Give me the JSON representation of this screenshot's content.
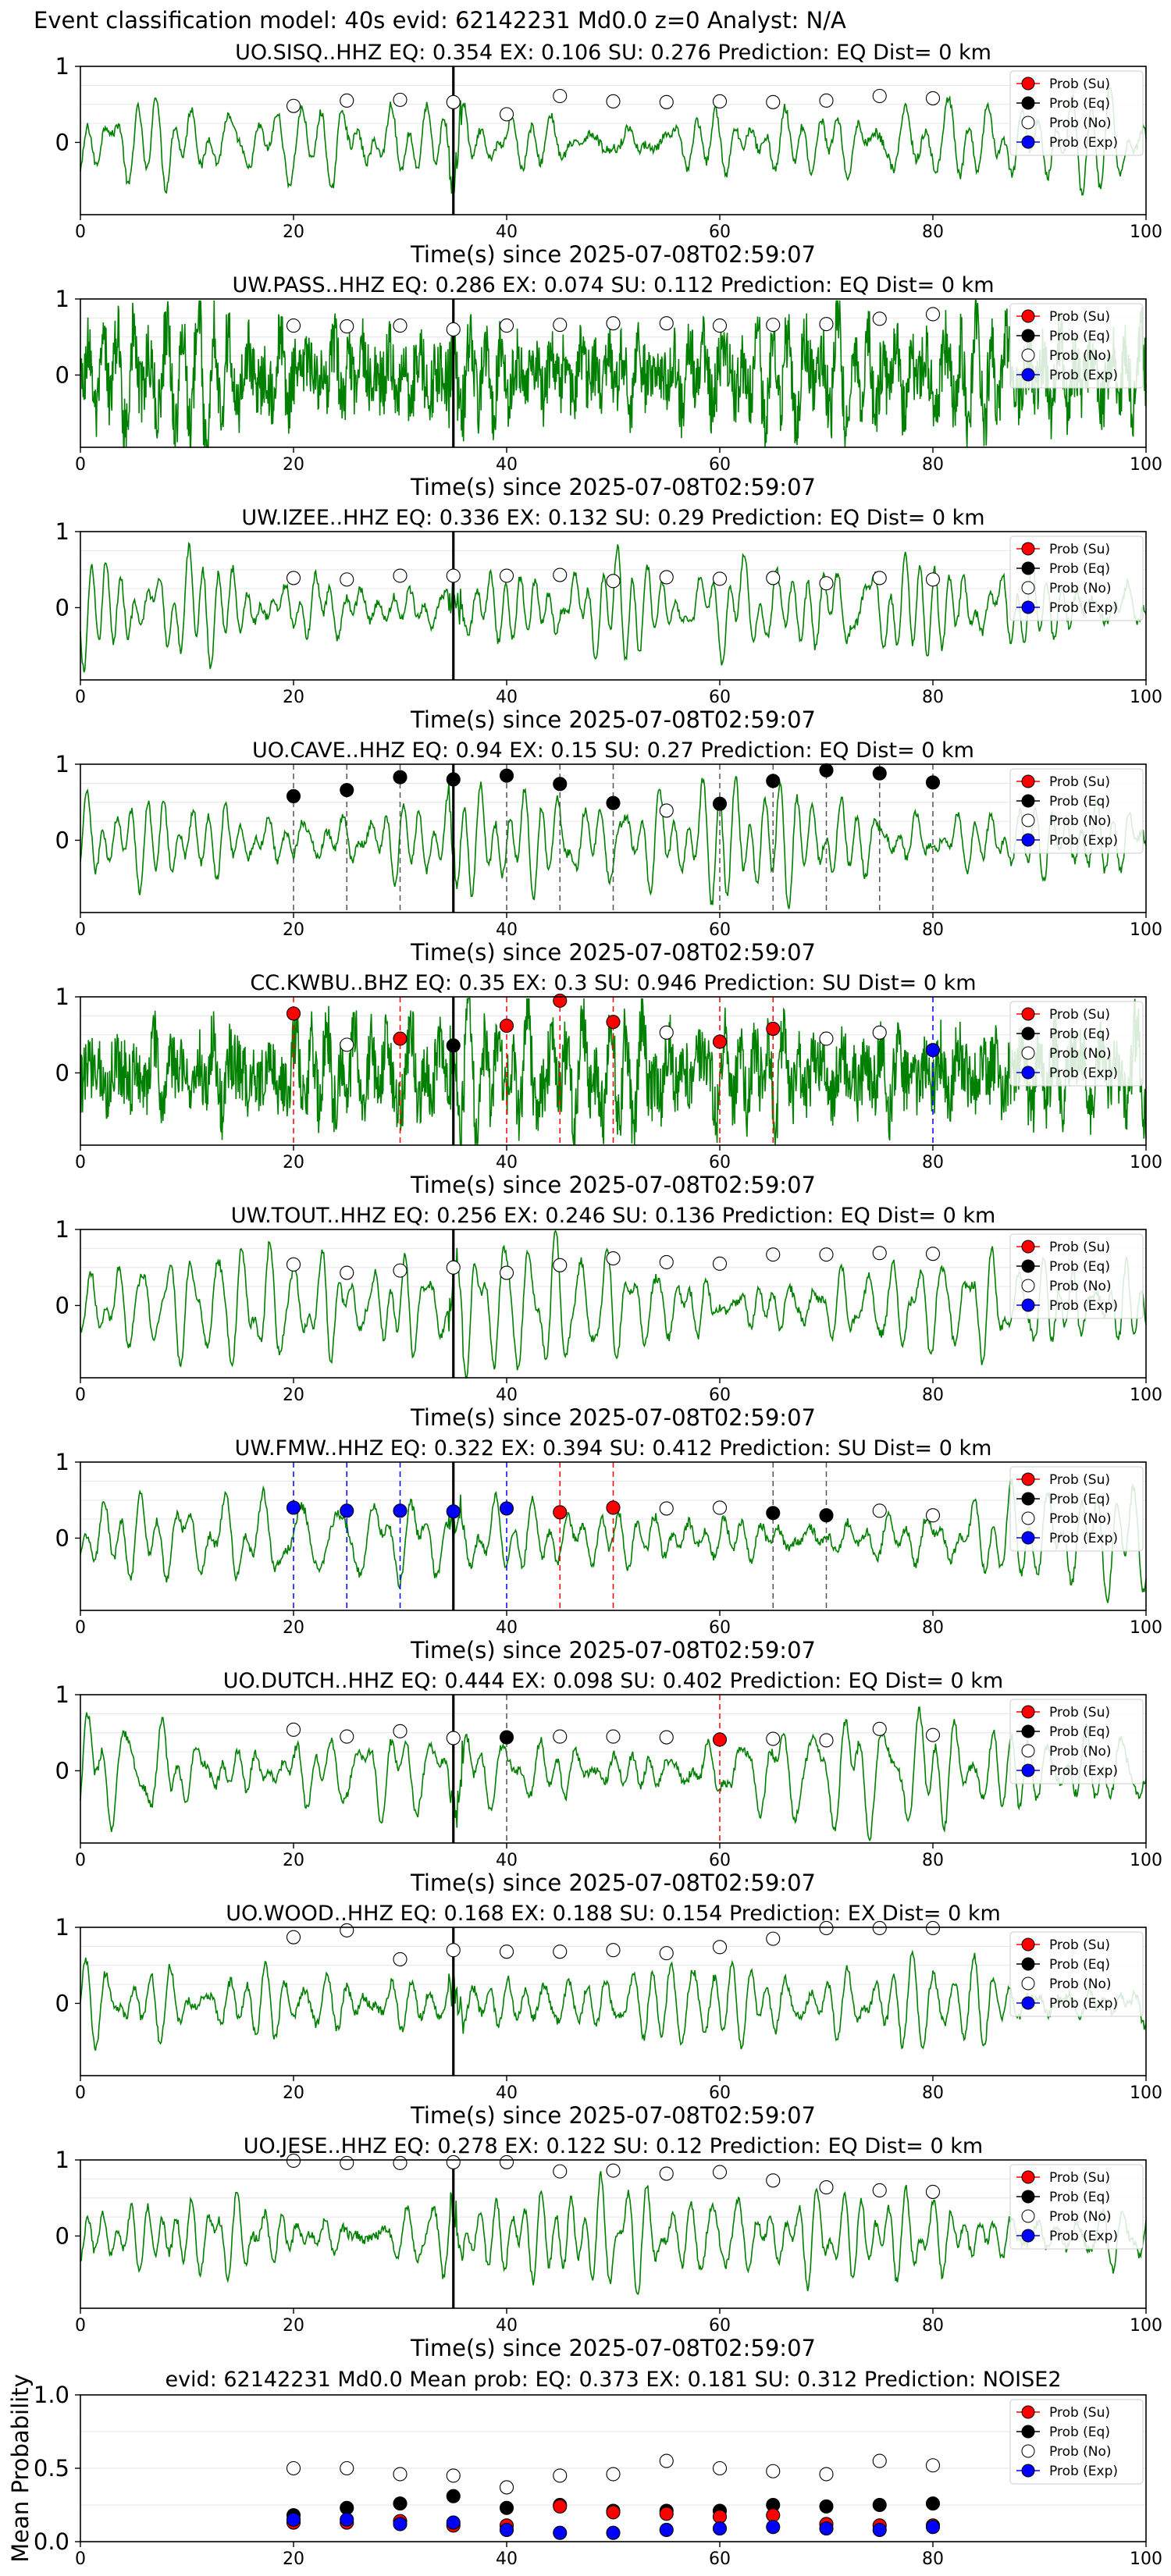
{
  "figure": {
    "suptitle": "Event classification model: 40s evid: 62142231 Md0.0 z=0 Analyst: N/A",
    "xlabel": "Time(s) since 2025-07-08T02:59:07",
    "xticks": [
      0,
      20,
      40,
      60,
      80,
      100
    ],
    "yticks_wave": [
      0,
      1
    ],
    "legend": [
      "Prob (Su)",
      "Prob (Eq)",
      "Prob (No)",
      "Prob (Exp)"
    ],
    "colors": {
      "su": "#ff0000",
      "eq": "#000000",
      "no": "#ffffff",
      "exp": "#0000ff",
      "wave": "#008000"
    },
    "arrival_line_t": 35,
    "prob_times": [
      20,
      25,
      30,
      35,
      40,
      45,
      50,
      55,
      60,
      65,
      70,
      75,
      80
    ]
  },
  "chart_data": [
    {
      "type": "line",
      "station": "UO.SISQ..HHZ",
      "title": "UO.SISQ..HHZ   EQ: 0.354  EX: 0.106  SU: 0.276   Prediction: EQ    Dist= 0 km",
      "xlim": [
        0,
        100
      ],
      "ylim": [
        -0.95,
        1.0
      ],
      "wave_style": "smooth",
      "points": [
        [
          20,
          0.48,
          "no"
        ],
        [
          25,
          0.55,
          "no"
        ],
        [
          30,
          0.56,
          "no"
        ],
        [
          35,
          0.53,
          "no"
        ],
        [
          40,
          0.37,
          "no"
        ],
        [
          45,
          0.61,
          "no"
        ],
        [
          50,
          0.54,
          "no"
        ],
        [
          55,
          0.53,
          "no"
        ],
        [
          60,
          0.54,
          "no"
        ],
        [
          65,
          0.53,
          "no"
        ],
        [
          70,
          0.55,
          "no"
        ],
        [
          75,
          0.61,
          "no"
        ],
        [
          80,
          0.58,
          "no"
        ]
      ]
    },
    {
      "type": "line",
      "station": "UW.PASS..HHZ",
      "title": "UW.PASS..HHZ   EQ: 0.286  EX: 0.074  SU: 0.112   Prediction: EQ    Dist= 0 km",
      "xlim": [
        0,
        100
      ],
      "ylim": [
        -0.95,
        1.0
      ],
      "wave_style": "noisy",
      "points": [
        [
          20,
          0.65,
          "no"
        ],
        [
          25,
          0.64,
          "no"
        ],
        [
          30,
          0.65,
          "no"
        ],
        [
          35,
          0.6,
          "no"
        ],
        [
          40,
          0.65,
          "no"
        ],
        [
          45,
          0.66,
          "no"
        ],
        [
          50,
          0.68,
          "no"
        ],
        [
          55,
          0.68,
          "no"
        ],
        [
          60,
          0.65,
          "no"
        ],
        [
          65,
          0.66,
          "no"
        ],
        [
          70,
          0.67,
          "no"
        ],
        [
          75,
          0.74,
          "no"
        ],
        [
          80,
          0.8,
          "no"
        ]
      ]
    },
    {
      "type": "line",
      "station": "UW.IZEE..HHZ",
      "title": "UW.IZEE..HHZ   EQ: 0.336  EX: 0.132  SU: 0.29   Prediction: EQ    Dist= 0 km",
      "xlim": [
        0,
        100
      ],
      "ylim": [
        -0.95,
        1.0
      ],
      "wave_style": "smooth",
      "points": [
        [
          20,
          0.39,
          "no"
        ],
        [
          25,
          0.37,
          "no"
        ],
        [
          30,
          0.42,
          "no"
        ],
        [
          35,
          0.42,
          "no"
        ],
        [
          40,
          0.42,
          "no"
        ],
        [
          45,
          0.43,
          "no"
        ],
        [
          50,
          0.35,
          "no"
        ],
        [
          55,
          0.4,
          "no"
        ],
        [
          60,
          0.38,
          "no"
        ],
        [
          65,
          0.39,
          "no"
        ],
        [
          70,
          0.32,
          "no"
        ],
        [
          75,
          0.39,
          "no"
        ],
        [
          80,
          0.37,
          "no"
        ]
      ]
    },
    {
      "type": "line",
      "station": "UO.CAVE..HHZ",
      "title": "UO.CAVE..HHZ   EQ: 0.94  EX: 0.15  SU: 0.27   Prediction: EQ    Dist= 0 km",
      "xlim": [
        0,
        100
      ],
      "ylim": [
        -0.95,
        1.0
      ],
      "wave_style": "smooth",
      "points": [
        [
          20,
          0.58,
          "eq"
        ],
        [
          25,
          0.66,
          "eq"
        ],
        [
          30,
          0.83,
          "eq"
        ],
        [
          35,
          0.8,
          "eq"
        ],
        [
          40,
          0.85,
          "eq"
        ],
        [
          45,
          0.74,
          "eq"
        ],
        [
          50,
          0.49,
          "eq"
        ],
        [
          55,
          0.39,
          "no"
        ],
        [
          60,
          0.48,
          "eq"
        ],
        [
          65,
          0.78,
          "eq"
        ],
        [
          70,
          0.92,
          "eq"
        ],
        [
          75,
          0.88,
          "eq"
        ],
        [
          80,
          0.76,
          "eq"
        ]
      ]
    },
    {
      "type": "line",
      "station": "CC.KWBU..BHZ",
      "title": "CC.KWBU..BHZ   EQ: 0.35  EX: 0.3  SU: 0.946   Prediction: SU    Dist= 0 km",
      "xlim": [
        0,
        100
      ],
      "ylim": [
        -0.95,
        1.0
      ],
      "wave_style": "noisy",
      "points": [
        [
          20,
          0.78,
          "su"
        ],
        [
          25,
          0.37,
          "no"
        ],
        [
          30,
          0.45,
          "su"
        ],
        [
          35,
          0.36,
          "eq"
        ],
        [
          40,
          0.62,
          "su"
        ],
        [
          45,
          0.95,
          "su"
        ],
        [
          50,
          0.67,
          "su"
        ],
        [
          55,
          0.53,
          "no"
        ],
        [
          60,
          0.41,
          "su"
        ],
        [
          65,
          0.58,
          "su"
        ],
        [
          70,
          0.45,
          "no"
        ],
        [
          75,
          0.53,
          "no"
        ],
        [
          80,
          0.3,
          "exp"
        ]
      ]
    },
    {
      "type": "line",
      "station": "UW.TOUT..HHZ",
      "title": "UW.TOUT..HHZ   EQ: 0.256  EX: 0.246  SU: 0.136   Prediction: EQ    Dist= 0 km",
      "xlim": [
        0,
        100
      ],
      "ylim": [
        -0.95,
        1.0
      ],
      "wave_style": "smooth",
      "points": [
        [
          20,
          0.54,
          "no"
        ],
        [
          25,
          0.43,
          "no"
        ],
        [
          30,
          0.46,
          "no"
        ],
        [
          35,
          0.5,
          "no"
        ],
        [
          40,
          0.43,
          "no"
        ],
        [
          45,
          0.53,
          "no"
        ],
        [
          50,
          0.62,
          "no"
        ],
        [
          55,
          0.57,
          "no"
        ],
        [
          60,
          0.55,
          "no"
        ],
        [
          65,
          0.67,
          "no"
        ],
        [
          70,
          0.67,
          "no"
        ],
        [
          75,
          0.69,
          "no"
        ],
        [
          80,
          0.68,
          "no"
        ]
      ]
    },
    {
      "type": "line",
      "station": "UW.FMW..HHZ",
      "title": "UW.FMW..HHZ   EQ: 0.322  EX: 0.394  SU: 0.412   Prediction: SU    Dist= 0 km",
      "xlim": [
        0,
        100
      ],
      "ylim": [
        -0.95,
        1.0
      ],
      "wave_style": "smooth",
      "points": [
        [
          20,
          0.4,
          "exp"
        ],
        [
          25,
          0.36,
          "exp"
        ],
        [
          30,
          0.36,
          "exp"
        ],
        [
          35,
          0.35,
          "exp"
        ],
        [
          40,
          0.39,
          "exp"
        ],
        [
          45,
          0.34,
          "su"
        ],
        [
          50,
          0.4,
          "su"
        ],
        [
          55,
          0.39,
          "no"
        ],
        [
          60,
          0.4,
          "no"
        ],
        [
          65,
          0.33,
          "eq"
        ],
        [
          70,
          0.3,
          "eq"
        ],
        [
          75,
          0.36,
          "no"
        ],
        [
          80,
          0.3,
          "no"
        ]
      ]
    },
    {
      "type": "line",
      "station": "UO.DUTCH..HHZ",
      "title": "UO.DUTCH..HHZ   EQ: 0.444  EX: 0.098  SU: 0.402   Prediction: EQ    Dist= 0 km",
      "xlim": [
        0,
        100
      ],
      "ylim": [
        -0.95,
        1.0
      ],
      "wave_style": "smooth",
      "points": [
        [
          20,
          0.54,
          "no"
        ],
        [
          25,
          0.45,
          "no"
        ],
        [
          30,
          0.52,
          "no"
        ],
        [
          35,
          0.43,
          "no"
        ],
        [
          40,
          0.44,
          "eq"
        ],
        [
          45,
          0.45,
          "no"
        ],
        [
          50,
          0.45,
          "no"
        ],
        [
          55,
          0.44,
          "no"
        ],
        [
          60,
          0.41,
          "su"
        ],
        [
          65,
          0.42,
          "no"
        ],
        [
          70,
          0.4,
          "no"
        ],
        [
          75,
          0.55,
          "no"
        ],
        [
          80,
          0.47,
          "no"
        ]
      ]
    },
    {
      "type": "line",
      "station": "UO.WOOD..HHZ",
      "title": "UO.WOOD..HHZ   EQ: 0.168  EX: 0.188  SU: 0.154   Prediction: EX    Dist= 0 km",
      "xlim": [
        0,
        100
      ],
      "ylim": [
        -0.95,
        1.0
      ],
      "wave_style": "smooth",
      "points": [
        [
          20,
          0.87,
          "no"
        ],
        [
          25,
          0.96,
          "no"
        ],
        [
          30,
          0.58,
          "no"
        ],
        [
          35,
          0.7,
          "no"
        ],
        [
          40,
          0.68,
          "no"
        ],
        [
          45,
          0.68,
          "no"
        ],
        [
          50,
          0.7,
          "no"
        ],
        [
          55,
          0.66,
          "no"
        ],
        [
          60,
          0.74,
          "no"
        ],
        [
          65,
          0.85,
          "no"
        ],
        [
          70,
          0.99,
          "no"
        ],
        [
          75,
          0.99,
          "no"
        ],
        [
          80,
          0.99,
          "no"
        ]
      ]
    },
    {
      "type": "line",
      "station": "UO.JESE..HHZ",
      "title": "UO.JESE..HHZ   EQ: 0.278  EX: 0.122  SU: 0.12   Prediction: EQ    Dist= 0 km",
      "xlim": [
        0,
        100
      ],
      "ylim": [
        -0.95,
        1.0
      ],
      "wave_style": "smooth",
      "points": [
        [
          20,
          0.99,
          "no"
        ],
        [
          25,
          0.96,
          "no"
        ],
        [
          30,
          0.96,
          "no"
        ],
        [
          35,
          0.97,
          "no"
        ],
        [
          40,
          0.97,
          "no"
        ],
        [
          45,
          0.85,
          "no"
        ],
        [
          50,
          0.86,
          "no"
        ],
        [
          55,
          0.82,
          "no"
        ],
        [
          60,
          0.84,
          "no"
        ],
        [
          65,
          0.73,
          "no"
        ],
        [
          70,
          0.64,
          "no"
        ],
        [
          75,
          0.6,
          "no"
        ],
        [
          80,
          0.58,
          "no"
        ]
      ]
    },
    {
      "type": "scatter",
      "title": "evid: 62142231  Md0.0   Mean prob:   EQ: 0.373  EX: 0.181  SU: 0.312   Prediction: NOISE2",
      "ylabel": "Mean Probability",
      "xlim": [
        0,
        100
      ],
      "ylim": [
        0,
        1.0
      ],
      "yticks": [
        0.0,
        0.5,
        1.0
      ],
      "xticks": [
        0,
        20,
        40,
        60,
        80,
        100
      ],
      "x": [
        20,
        25,
        30,
        35,
        40,
        45,
        50,
        55,
        60,
        65,
        70,
        75,
        80
      ],
      "series": [
        {
          "name": "Prob (Su)",
          "key": "su",
          "values": [
            0.13,
            0.13,
            0.14,
            0.11,
            0.11,
            0.24,
            0.2,
            0.19,
            0.17,
            0.18,
            0.12,
            0.11,
            0.11
          ]
        },
        {
          "name": "Prob (Eq)",
          "key": "eq",
          "values": [
            0.18,
            0.23,
            0.26,
            0.31,
            0.23,
            0.25,
            0.21,
            0.21,
            0.21,
            0.25,
            0.24,
            0.25,
            0.26
          ]
        },
        {
          "name": "Prob (No)",
          "key": "no",
          "values": [
            0.5,
            0.5,
            0.46,
            0.45,
            0.37,
            0.45,
            0.46,
            0.55,
            0.5,
            0.48,
            0.46,
            0.55,
            0.52
          ]
        },
        {
          "name": "Prob (Exp)",
          "key": "exp",
          "values": [
            0.15,
            0.15,
            0.12,
            0.13,
            0.08,
            0.06,
            0.06,
            0.08,
            0.09,
            0.1,
            0.09,
            0.08,
            0.1
          ]
        }
      ]
    }
  ]
}
